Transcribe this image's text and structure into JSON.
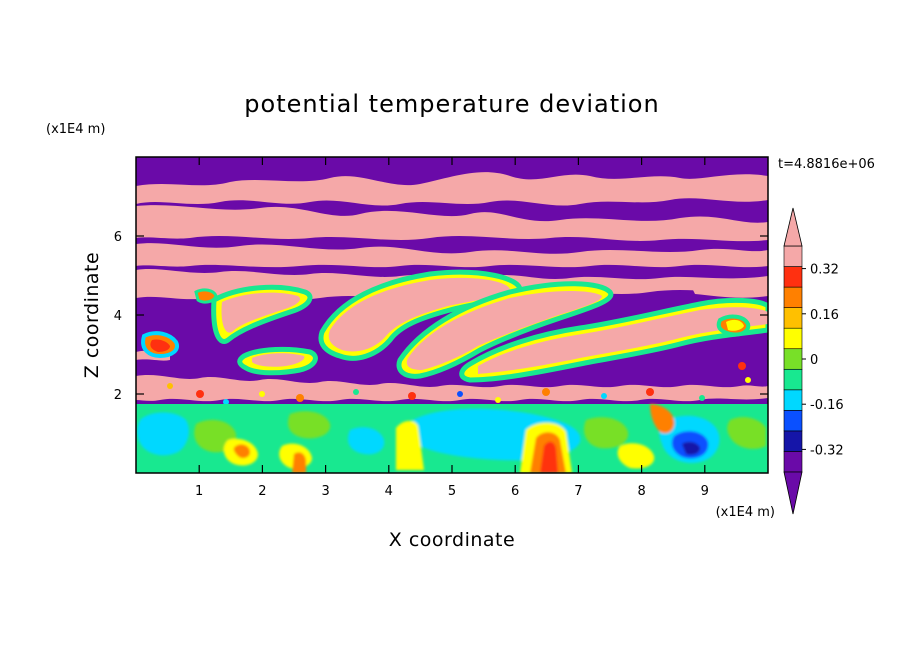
{
  "chart_data": {
    "type": "heatmap",
    "title": "potential temperature deviation",
    "xlabel": "X coordinate",
    "ylabel": "Z coordinate",
    "x_unit": "(x1E4 m)",
    "y_unit": "(x1E4 m)",
    "xlim": [
      0,
      10
    ],
    "ylim": [
      0,
      8
    ],
    "x_ticks": [
      "1",
      "2",
      "3",
      "4",
      "5",
      "6",
      "7",
      "8",
      "9"
    ],
    "y_ticks": [
      "2",
      "4",
      "6"
    ],
    "time_label": "t=4.8816e+06",
    "colorbar": {
      "levels": [
        -0.4,
        -0.32,
        -0.24,
        -0.16,
        -0.08,
        0,
        0.08,
        0.16,
        0.24,
        0.32,
        0.4
      ],
      "colors": [
        "#6a0aa8",
        "#1515a8",
        "#0a50ff",
        "#00d8ff",
        "#18e890",
        "#78e028",
        "#ffff00",
        "#ffc000",
        "#ff8000",
        "#ff3010",
        "#f5a8a8"
      ],
      "over_color": "#f5a8a8",
      "under_color": "#6a0aa8",
      "tick_labels": [
        "0.32",
        "0.16",
        "0",
        "-0.16",
        "-0.32"
      ],
      "tick_values": [
        0.32,
        0.16,
        0,
        -0.16,
        -0.32
      ]
    }
  }
}
